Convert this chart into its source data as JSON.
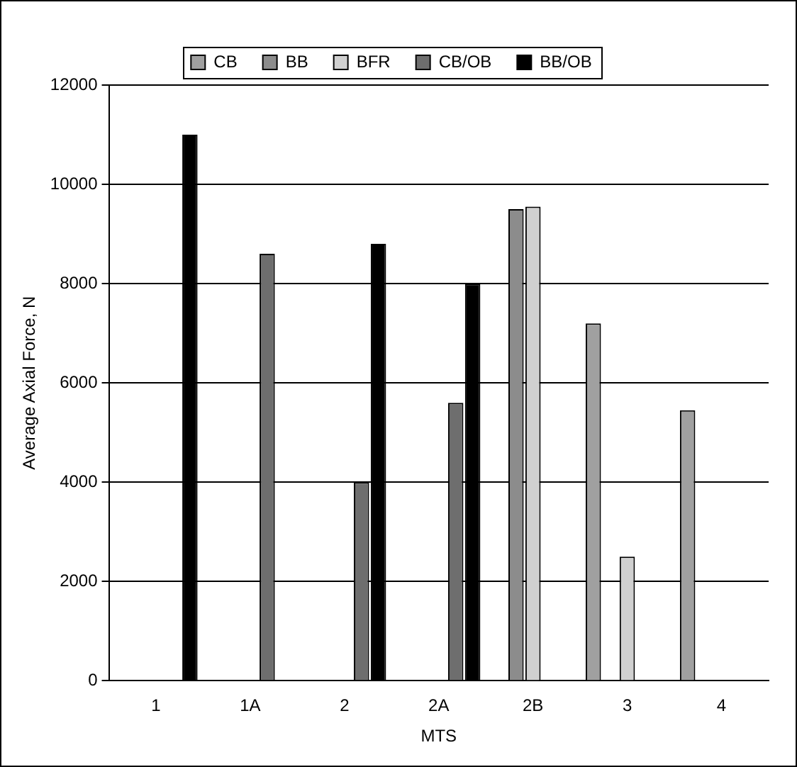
{
  "chart_data": {
    "type": "bar",
    "xlabel": "MTS",
    "ylabel": "Average Axial Force, N",
    "categories": [
      "1",
      "1A",
      "2",
      "2A",
      "2B",
      "3",
      "4"
    ],
    "series": [
      {
        "name": "CB",
        "color": "#a0a0a0",
        "values": [
          null,
          null,
          null,
          null,
          null,
          7200,
          5450
        ]
      },
      {
        "name": "BB",
        "color": "#8c8c8c",
        "values": [
          null,
          null,
          null,
          null,
          9500,
          null,
          null
        ]
      },
      {
        "name": "BFR",
        "color": "#d0d0d0",
        "values": [
          null,
          null,
          null,
          null,
          9550,
          2500,
          null
        ]
      },
      {
        "name": "CB/OB",
        "color": "#6e6e6e",
        "values": [
          null,
          8600,
          4000,
          5600,
          null,
          null,
          null
        ]
      },
      {
        "name": "BB/OB",
        "color": "#000000",
        "values": [
          11000,
          null,
          8800,
          8000,
          null,
          null,
          null
        ]
      }
    ],
    "ylim": [
      0,
      12000
    ],
    "yticks": [
      0,
      2000,
      4000,
      6000,
      8000,
      10000,
      12000
    ],
    "grid": "y",
    "legend": "top"
  }
}
